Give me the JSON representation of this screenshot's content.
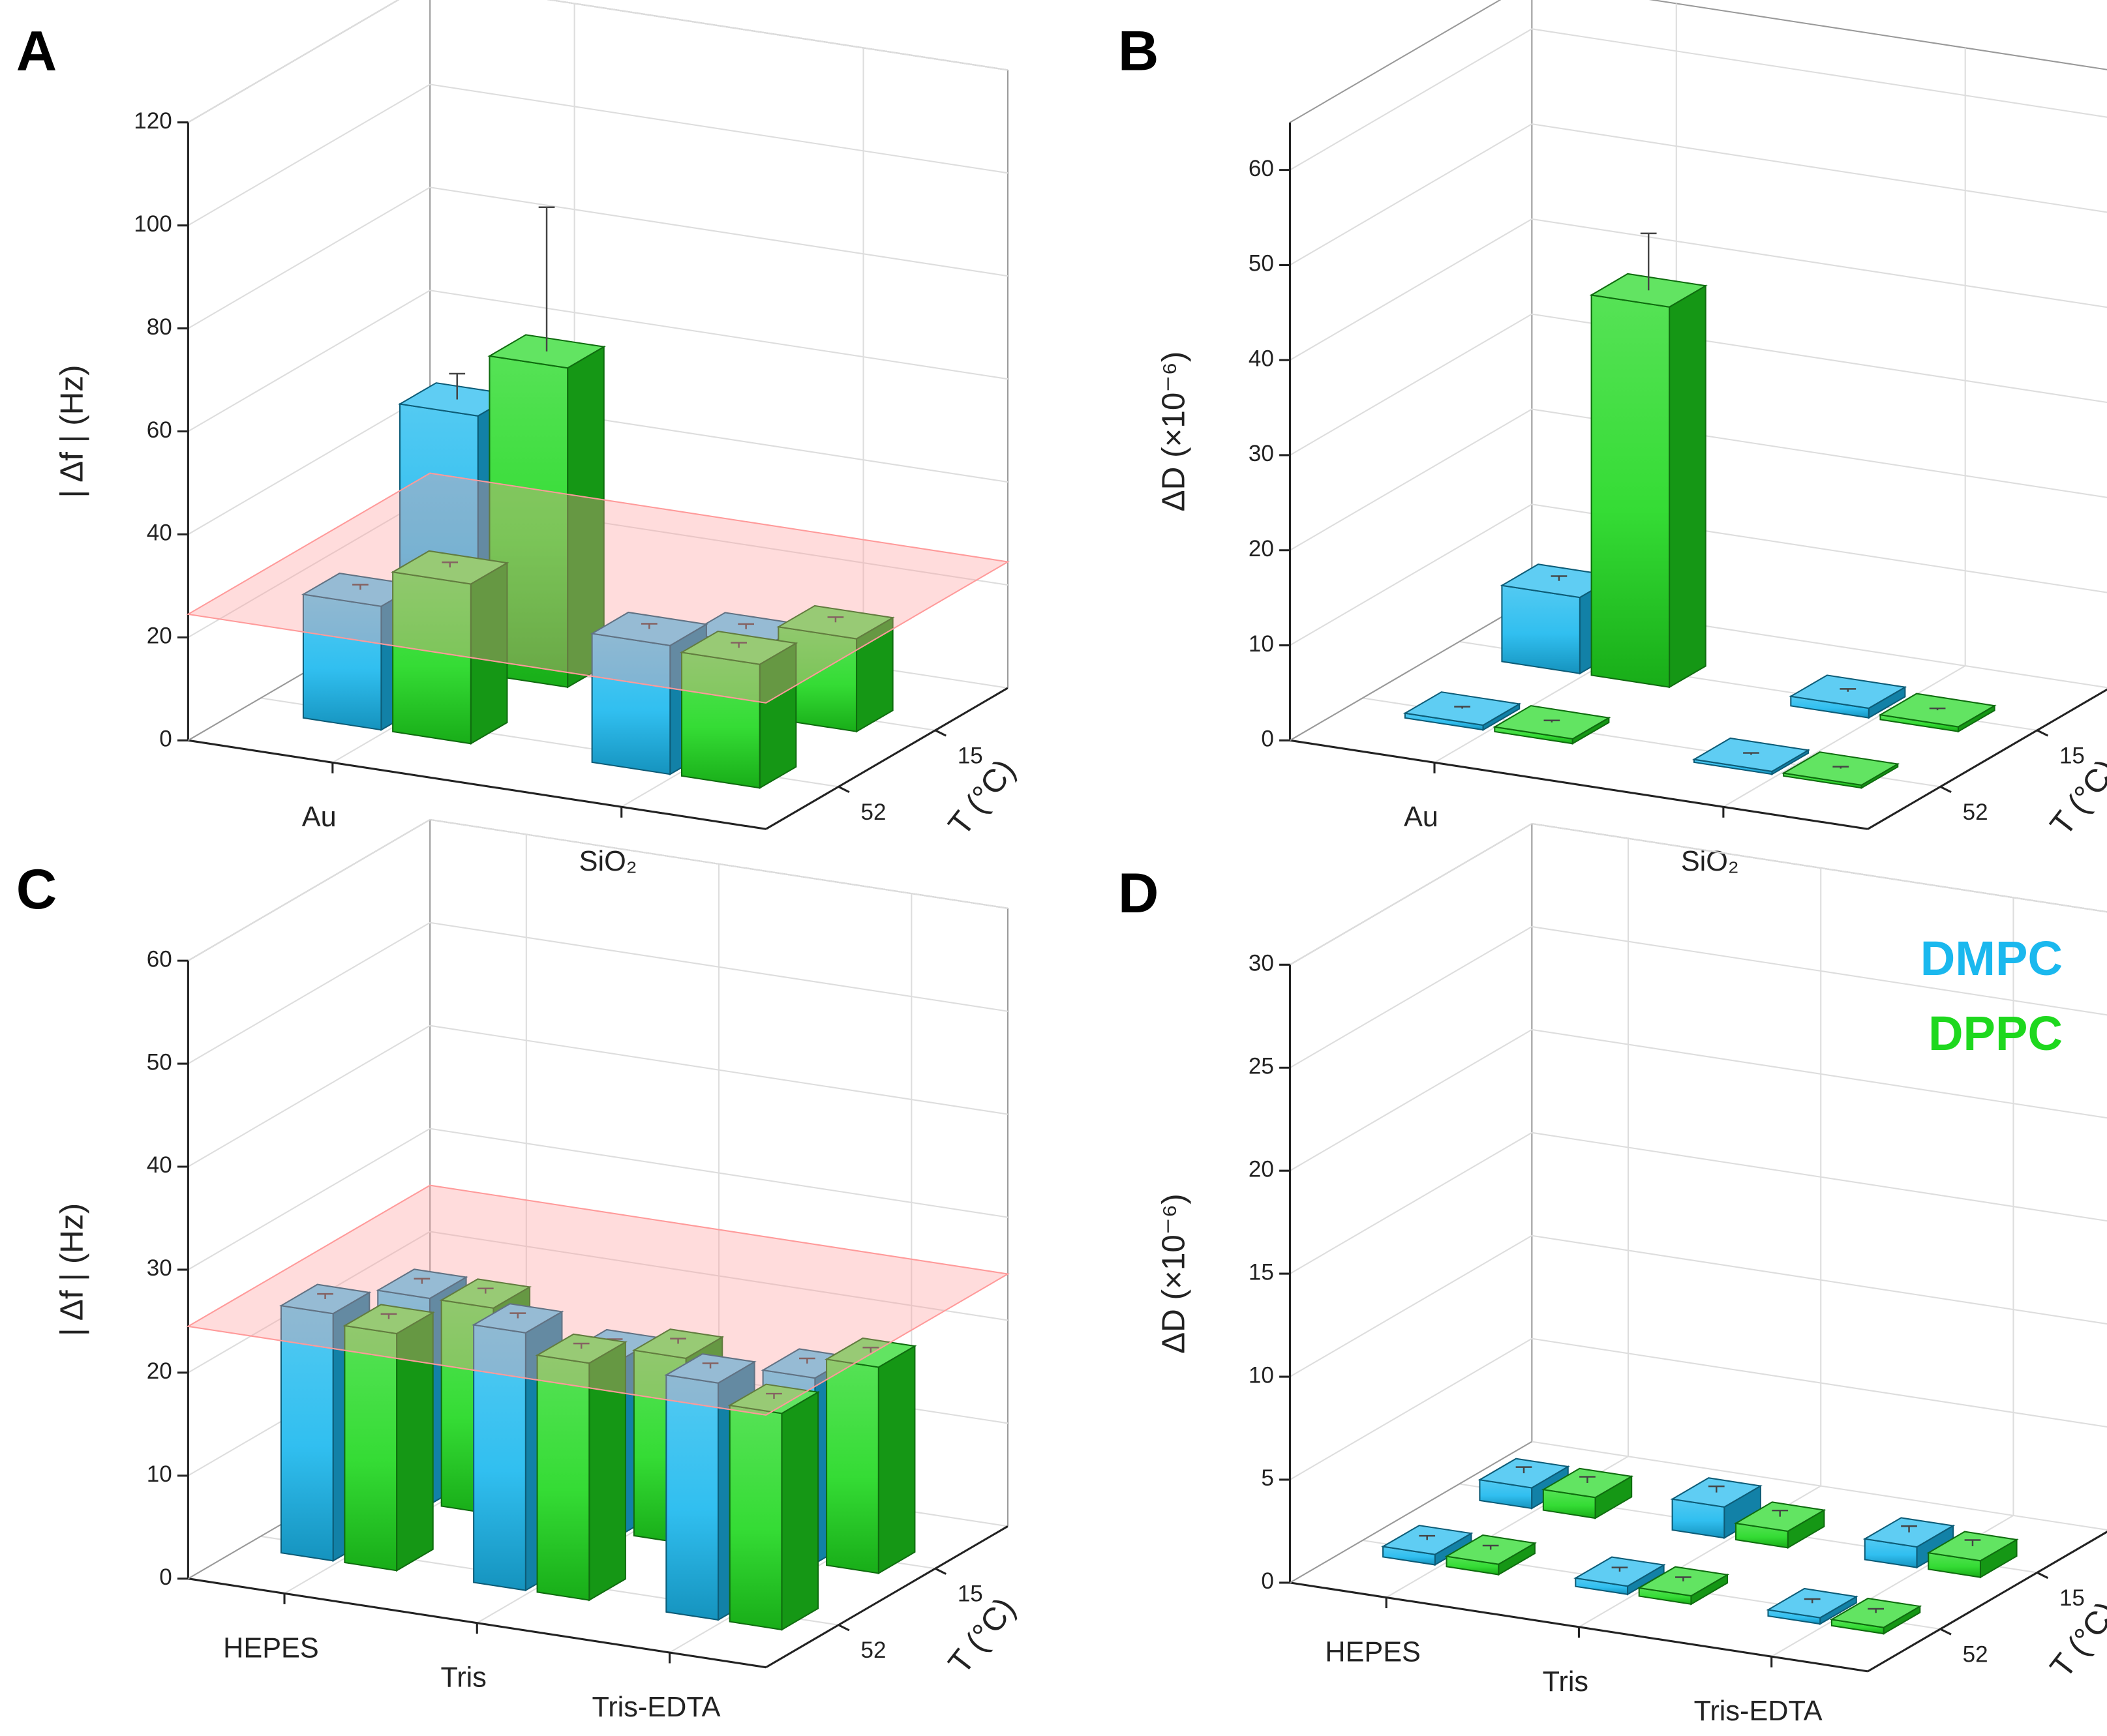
{
  "chart_data": [
    {
      "type": "bar3d",
      "label": "A",
      "y_label": "| Δf | (Hz)",
      "categories": [
        "Au",
        "SiO₂"
      ],
      "depth_label": "T (°C)",
      "depth_categories": [
        "15",
        "52"
      ],
      "ylim": [
        0,
        120
      ],
      "yticks": [
        0,
        20,
        40,
        60,
        80,
        100,
        120
      ],
      "grid": true,
      "reference": 24.5,
      "reference_color": "#ff9a9a",
      "series": [
        {
          "color": "#1ab8ee",
          "values": [
            [
              50,
              24
            ],
            [
              14,
              25
            ]
          ],
          "errors": [
            [
              5,
              1
            ],
            [
              1,
              1
            ]
          ]
        },
        {
          "color": "#1ed81e",
          "values": [
            [
              62,
              31
            ],
            [
              18,
              24
            ]
          ],
          "errors": [
            [
              28,
              1
            ],
            [
              1,
              1
            ]
          ]
        }
      ]
    },
    {
      "type": "bar3d",
      "label": "B",
      "y_label": "ΔD (×10⁻⁶)",
      "categories": [
        "Au",
        "SiO₂"
      ],
      "depth_label": "T (°C)",
      "depth_categories": [
        "15",
        "52"
      ],
      "ylim": [
        0,
        65
      ],
      "yticks": [
        0,
        10,
        20,
        30,
        40,
        50,
        60
      ],
      "grid": true,
      "series": [
        {
          "color": "#1ab8ee",
          "values": [
            [
              8,
              0.5
            ],
            [
              1,
              0.3
            ]
          ],
          "errors": [
            [
              0.5,
              0.2
            ],
            [
              0.3,
              0.2
            ]
          ]
        },
        {
          "color": "#1ed81e",
          "values": [
            [
              40,
              0.5
            ],
            [
              0.5,
              0.3
            ]
          ],
          "errors": [
            [
              6,
              0.2
            ],
            [
              0.2,
              0.2
            ]
          ]
        }
      ]
    },
    {
      "type": "bar3d",
      "label": "C",
      "y_label": "| Δf | (Hz)",
      "categories": [
        "HEPES",
        "Tris",
        "Tris-EDTA"
      ],
      "depth_label": "T (°C)",
      "depth_categories": [
        "15",
        "52"
      ],
      "ylim": [
        0,
        60
      ],
      "yticks": [
        0,
        10,
        20,
        30,
        40,
        50,
        60
      ],
      "grid": true,
      "reference": 24.5,
      "reference_color": "#ff9a9a",
      "series": [
        {
          "color": "#1ab8ee",
          "values": [
            [
              20,
              24
            ],
            [
              17,
              25
            ],
            [
              18,
              23
            ]
          ],
          "errors": [
            [
              0.5,
              0.5
            ],
            [
              0.5,
              0.5
            ],
            [
              0.5,
              0.5
            ]
          ]
        },
        {
          "color": "#1ed81e",
          "values": [
            [
              20,
              23
            ],
            [
              18,
              23
            ],
            [
              20,
              21
            ]
          ],
          "errors": [
            [
              0.5,
              0.5
            ],
            [
              0.5,
              0.5
            ],
            [
              0.5,
              0.5
            ]
          ]
        }
      ]
    },
    {
      "type": "bar3d",
      "label": "D",
      "y_label": "ΔD (×10⁻⁶)",
      "categories": [
        "HEPES",
        "Tris",
        "Tris-EDTA"
      ],
      "depth_label": "T (°C)",
      "depth_categories": [
        "15",
        "52"
      ],
      "ylim": [
        0,
        30
      ],
      "yticks": [
        0,
        5,
        10,
        15,
        20,
        25,
        30
      ],
      "grid": true,
      "legend": "upper right",
      "series": [
        {
          "name": "DMPC",
          "color": "#1ab8ee",
          "values": [
            [
              1,
              0.5
            ],
            [
              1.5,
              0.4
            ],
            [
              1,
              0.3
            ]
          ],
          "errors": [
            [
              0.3,
              0.2
            ],
            [
              0.3,
              0.2
            ],
            [
              0.3,
              0.2
            ]
          ]
        },
        {
          "name": "DPPC",
          "color": "#1ed81e",
          "values": [
            [
              1,
              0.5
            ],
            [
              0.8,
              0.4
            ],
            [
              0.8,
              0.3
            ]
          ],
          "errors": [
            [
              0.3,
              0.2
            ],
            [
              0.3,
              0.2
            ],
            [
              0.3,
              0.2
            ]
          ]
        }
      ]
    }
  ]
}
